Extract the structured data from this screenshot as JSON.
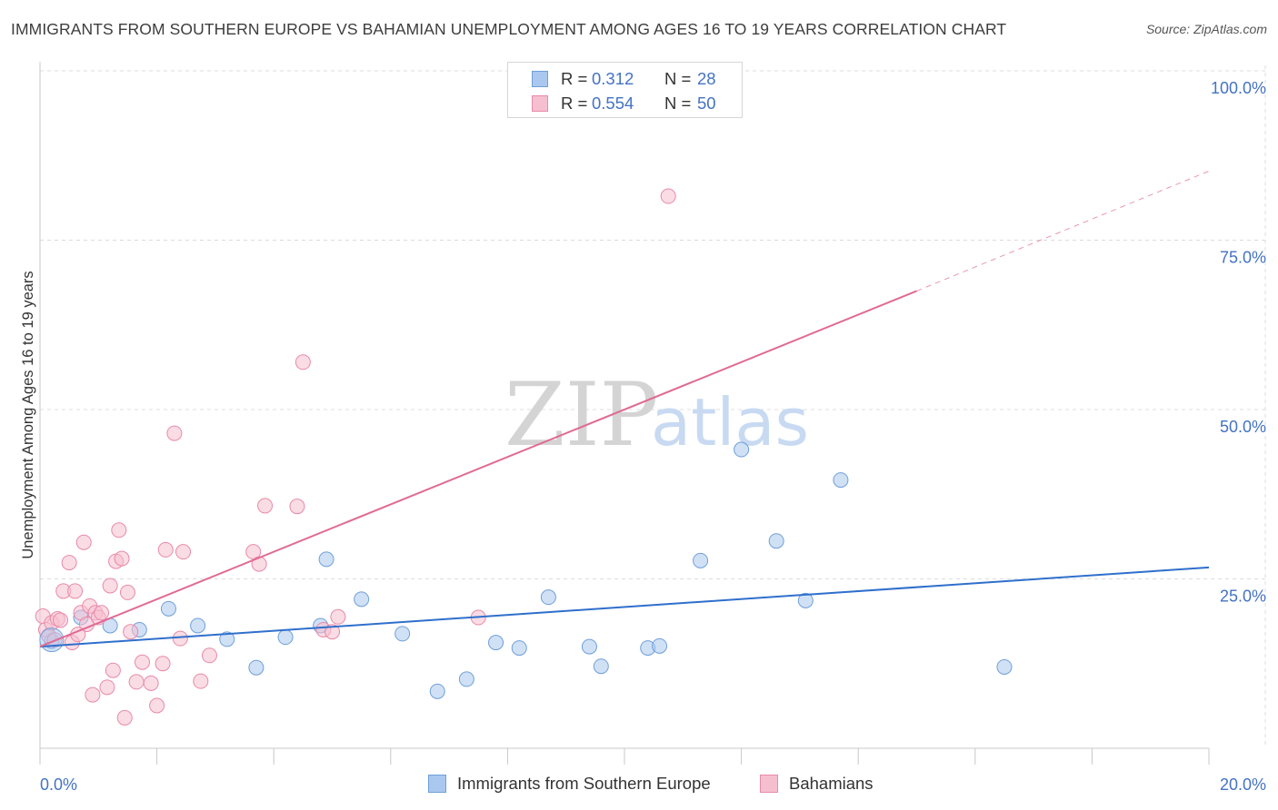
{
  "header": {
    "title": "IMMIGRANTS FROM SOUTHERN EUROPE VS BAHAMIAN UNEMPLOYMENT AMONG AGES 16 TO 19 YEARS CORRELATION CHART",
    "source": "Source: ZipAtlas.com"
  },
  "watermark": {
    "zip": "ZIP",
    "atlas": "atlas"
  },
  "legend": {
    "r_label": "R =",
    "n_label": "N =",
    "series": [
      {
        "name": "Immigrants from Southern Europe",
        "r": "0.312",
        "n": "28"
      },
      {
        "name": "Bahamians",
        "r": "0.554",
        "n": "50"
      }
    ]
  },
  "colors": {
    "blue_fill": "#aac8ef",
    "blue_stroke": "#6f9fd8",
    "blue_line": "#2f6fcc",
    "pink_fill": "#f6bfd0",
    "pink_stroke": "#e98aa8",
    "pink_line": "#e06b94",
    "axis_label": "#4472c4",
    "grid": "#dddddd"
  },
  "chart_data": {
    "type": "scatter",
    "title": "IMMIGRANTS FROM SOUTHERN EUROPE VS BAHAMIAN UNEMPLOYMENT AMONG AGES 16 TO 19 YEARS CORRELATION CHART",
    "xlabel": "",
    "ylabel": "Unemployment Among Ages 16 to 19 years",
    "xlim": [
      0,
      20
    ],
    "ylim": [
      0,
      100
    ],
    "x_tick_labels": [
      "0.0%",
      "20.0%"
    ],
    "y_tick_values": [
      25,
      50,
      75,
      100
    ],
    "y_tick_labels": [
      "25.0%",
      "50.0%",
      "75.0%",
      "100.0%"
    ],
    "series": [
      {
        "name": "Immigrants from Southern Europe",
        "color": "blue",
        "points": [
          [
            0.2,
            15.8
          ],
          [
            0.7,
            19.3
          ],
          [
            1.2,
            18.1
          ],
          [
            1.7,
            17.5
          ],
          [
            2.2,
            20.6
          ],
          [
            2.7,
            18.1
          ],
          [
            3.2,
            16.1
          ],
          [
            3.7,
            11.9
          ],
          [
            4.2,
            16.4
          ],
          [
            4.9,
            27.9
          ],
          [
            4.8,
            18.1
          ],
          [
            5.5,
            22.0
          ],
          [
            6.2,
            16.9
          ],
          [
            6.8,
            8.4
          ],
          [
            7.3,
            10.2
          ],
          [
            7.8,
            15.6
          ],
          [
            8.2,
            14.8
          ],
          [
            8.7,
            22.3
          ],
          [
            9.4,
            15.0
          ],
          [
            9.6,
            12.1
          ],
          [
            10.4,
            14.8
          ],
          [
            10.6,
            15.1
          ],
          [
            11.3,
            27.7
          ],
          [
            12.0,
            44.1
          ],
          [
            12.6,
            30.6
          ],
          [
            13.1,
            21.8
          ],
          [
            13.7,
            39.6
          ],
          [
            16.5,
            12.0
          ]
        ],
        "trendline": {
          "x": [
            0,
            20
          ],
          "y": [
            15.0,
            26.7
          ],
          "dashed_extension": false
        }
      },
      {
        "name": "Bahamians",
        "color": "pink",
        "points": [
          [
            0.05,
            19.5
          ],
          [
            0.1,
            17.5
          ],
          [
            0.15,
            16.6
          ],
          [
            0.2,
            18.5
          ],
          [
            0.25,
            16.0
          ],
          [
            0.3,
            19.1
          ],
          [
            0.35,
            18.9
          ],
          [
            0.4,
            23.2
          ],
          [
            0.5,
            27.4
          ],
          [
            0.55,
            15.6
          ],
          [
            0.6,
            23.2
          ],
          [
            0.7,
            20.0
          ],
          [
            0.75,
            30.4
          ],
          [
            0.8,
            18.3
          ],
          [
            0.85,
            21.0
          ],
          [
            0.9,
            7.9
          ],
          [
            0.95,
            20.0
          ],
          [
            1.0,
            19.3
          ],
          [
            1.05,
            20.0
          ],
          [
            1.15,
            9.0
          ],
          [
            1.2,
            24.0
          ],
          [
            1.25,
            11.5
          ],
          [
            1.3,
            27.6
          ],
          [
            1.35,
            32.2
          ],
          [
            1.4,
            28.0
          ],
          [
            1.45,
            4.5
          ],
          [
            1.5,
            23.0
          ],
          [
            1.55,
            17.2
          ],
          [
            1.65,
            9.8
          ],
          [
            1.75,
            12.7
          ],
          [
            1.9,
            9.6
          ],
          [
            2.0,
            6.3
          ],
          [
            2.1,
            12.5
          ],
          [
            2.15,
            29.3
          ],
          [
            2.3,
            46.5
          ],
          [
            2.4,
            16.2
          ],
          [
            2.45,
            29.0
          ],
          [
            2.75,
            9.9
          ],
          [
            2.9,
            13.7
          ],
          [
            3.65,
            29.0
          ],
          [
            3.75,
            27.2
          ],
          [
            3.85,
            35.8
          ],
          [
            4.4,
            35.7
          ],
          [
            4.5,
            57.0
          ],
          [
            4.85,
            17.5
          ],
          [
            5.0,
            17.2
          ],
          [
            5.1,
            19.4
          ],
          [
            7.5,
            19.3
          ],
          [
            10.75,
            81.5
          ],
          [
            0.65,
            16.8
          ]
        ],
        "trendline": {
          "x": [
            0,
            15
          ],
          "y": [
            15.0,
            67.5
          ],
          "dashed_extension_to_x": 20,
          "dashed_extension_y": 85.2
        }
      }
    ]
  }
}
